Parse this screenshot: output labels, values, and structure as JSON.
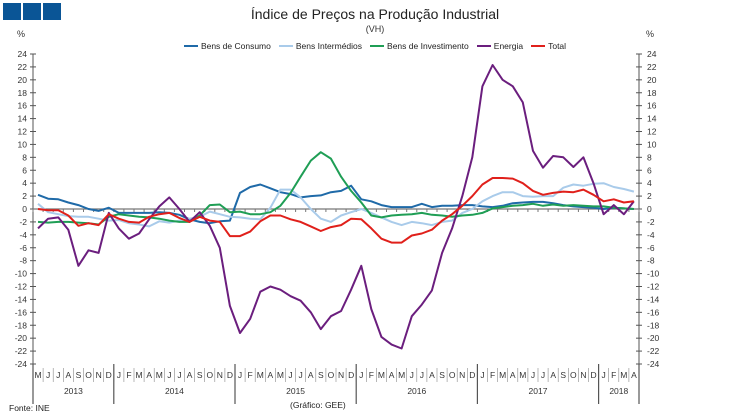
{
  "header": {
    "logo_squares": 3,
    "brand_color": "#0a5596"
  },
  "source": "Fonte: INE",
  "credit": "(Gráfico: GEE)",
  "chart_data": {
    "type": "line",
    "title": "Índice de Preços na Produção Industrial",
    "subtitle": "(VH)",
    "ylabel_left": "%",
    "ylabel_right": "%",
    "ylim": [
      -24,
      24
    ],
    "yticks": [
      24,
      22,
      20,
      18,
      16,
      14,
      12,
      10,
      8,
      6,
      4,
      2,
      0,
      -2,
      -4,
      -6,
      -8,
      -10,
      -12,
      -14,
      -16,
      -18,
      -20,
      -22,
      -24
    ],
    "legend_position": "top",
    "months": [
      "M",
      "J",
      "J",
      "A",
      "S",
      "O",
      "N",
      "D",
      "J",
      "F",
      "M",
      "A",
      "M",
      "J",
      "J",
      "A",
      "S",
      "O",
      "N",
      "D",
      "J",
      "F",
      "M",
      "A",
      "M",
      "J",
      "J",
      "A",
      "S",
      "O",
      "N",
      "D",
      "J",
      "F",
      "M",
      "A",
      "M",
      "J",
      "J",
      "A",
      "S",
      "O",
      "N",
      "D",
      "J",
      "F",
      "M",
      "A",
      "M",
      "J",
      "J",
      "A",
      "S",
      "O",
      "N",
      "D",
      "J",
      "F",
      "M",
      "A"
    ],
    "years": [
      {
        "label": "2013",
        "months": 8
      },
      {
        "label": "2014",
        "months": 12
      },
      {
        "label": "2015",
        "months": 12
      },
      {
        "label": "2016",
        "months": 12
      },
      {
        "label": "2017",
        "months": 12
      },
      {
        "label": "2018",
        "months": 4
      }
    ],
    "series": [
      {
        "name": "Bens de Consumo",
        "color": "#1f6aa8",
        "values": [
          2.2,
          1.6,
          1.5,
          1,
          0.6,
          0,
          -0.3,
          0.2,
          -0.6,
          -0.6,
          -0.6,
          -0.6,
          -0.5,
          -0.6,
          -0.9,
          -1.6,
          -2,
          -2.2,
          -1.9,
          -1.8,
          2.5,
          3.4,
          3.8,
          3.2,
          2.6,
          2.3,
          1.8,
          2,
          2.1,
          2.6,
          2.8,
          3.6,
          1.5,
          1.2,
          0.6,
          0.3,
          0.3,
          0.3,
          0.8,
          0.3,
          0.5,
          0.5,
          0.6,
          0.6,
          0.4,
          0.3,
          0.5,
          0.9,
          1,
          1.1,
          1.1,
          0.9,
          0.6,
          0.4,
          0.3,
          0.2,
          0,
          0.2,
          0.1,
          0
        ]
      },
      {
        "name": "Bens Intermédios",
        "color": "#a9cbea",
        "values": [
          0.8,
          -0.5,
          -0.8,
          -1.1,
          -1.2,
          -1.2,
          -1.5,
          -1.8,
          -1.7,
          -2.2,
          -2.4,
          -2.7,
          -1.9,
          -2.1,
          -1.8,
          -1.5,
          -1.2,
          -0.4,
          -0.8,
          -1.2,
          -1.3,
          -1.5,
          -1.6,
          0.2,
          3,
          3,
          1.8,
          0,
          -1.5,
          -2,
          -1,
          -0.5,
          0,
          -0.6,
          -1.3,
          -2,
          -2.5,
          -2,
          -2.2,
          -2.5,
          -2,
          -1.8,
          -0.6,
          0,
          1.2,
          2,
          2.6,
          2.6,
          2,
          1.9,
          2,
          2,
          3.3,
          3.8,
          3.6,
          3.9,
          4,
          3.4,
          3.1,
          2.7
        ]
      },
      {
        "name": "Bens de Investimento",
        "color": "#1f9e55",
        "values": [
          -2,
          -2.1,
          -2,
          -2,
          -2.1,
          -2.2,
          -2.4,
          -1.2,
          -0.8,
          -1,
          -1.2,
          -1.3,
          -1.5,
          -1.8,
          -2,
          -2,
          -1,
          0.6,
          0.7,
          -0.5,
          -0.4,
          -0.8,
          -0.8,
          -0.5,
          0.5,
          2.5,
          5,
          7.5,
          8.8,
          7.8,
          5,
          2.8,
          1,
          -1,
          -1.3,
          -1,
          -0.9,
          -0.8,
          -0.6,
          -0.9,
          -1,
          -1.2,
          -1,
          -0.9,
          -0.6,
          0.1,
          0.3,
          0.5,
          0.6,
          0.8,
          0.5,
          0.7,
          0.5,
          0.6,
          0.5,
          0.4,
          0.4,
          0.2,
          0.1,
          0
        ]
      },
      {
        "name": "Energia",
        "color": "#6b1e7e",
        "values": [
          -3,
          -1.5,
          -1.3,
          -3.2,
          -8.8,
          -6.4,
          -6.8,
          -0.6,
          -3,
          -4.6,
          -3.8,
          -1.6,
          0.4,
          1.8,
          0,
          -2,
          -0.5,
          -2.6,
          -6,
          -15,
          -19.2,
          -17,
          -12.8,
          -12,
          -12.5,
          -13.5,
          -14.2,
          -16,
          -18.6,
          -16.6,
          -15.8,
          -12.5,
          -8.8,
          -15.5,
          -19.8,
          -21,
          -21.6,
          -16.6,
          -14.8,
          -12.6,
          -6.8,
          -3,
          2,
          8,
          19,
          22.3,
          20,
          19,
          16.5,
          9,
          6.4,
          8.2,
          8,
          6.5,
          8,
          4,
          -0.8,
          0.6,
          -0.8,
          1.2
        ]
      },
      {
        "name": "Total",
        "color": "#e0201b",
        "values": [
          0,
          -0.2,
          -0.2,
          -1,
          -2.6,
          -2.2,
          -2.5,
          -0.8,
          -1.5,
          -2,
          -2.1,
          -1.2,
          -0.8,
          -0.6,
          -1.4,
          -2,
          -1.2,
          -1.8,
          -2,
          -4.2,
          -4.2,
          -3.5,
          -1.9,
          -1,
          -1,
          -1.6,
          -2,
          -2.7,
          -3.4,
          -2.8,
          -2.5,
          -1.5,
          -1.6,
          -3,
          -4.6,
          -5.2,
          -5.2,
          -4.1,
          -3.8,
          -3.2,
          -1.8,
          -0.8,
          0.5,
          2,
          3.8,
          4.8,
          4.8,
          4.7,
          4,
          2.8,
          2.2,
          2.5,
          2.7,
          2.6,
          3,
          2.2,
          1.2,
          1.5,
          1,
          1.2
        ]
      }
    ]
  }
}
